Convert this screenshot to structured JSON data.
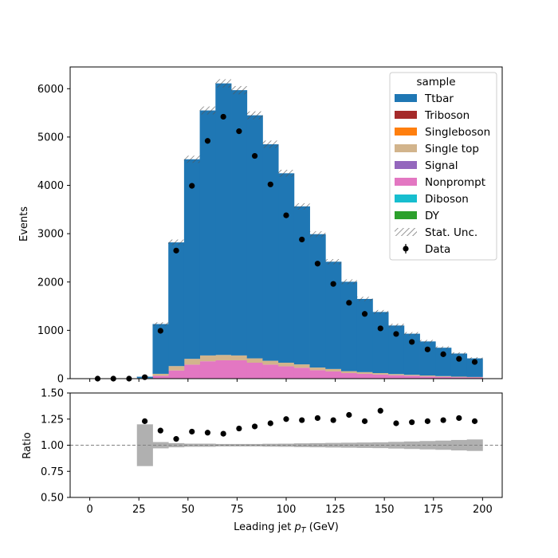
{
  "chart_data": [
    {
      "type": "stacked-step-histogram",
      "xlim": [
        -10,
        210
      ],
      "ylim": [
        0,
        6450
      ],
      "ylabel": "Events",
      "bin_edges": [
        0,
        8,
        16,
        24,
        32,
        40,
        48,
        56,
        64,
        72,
        80,
        88,
        96,
        104,
        112,
        120,
        128,
        136,
        144,
        152,
        160,
        168,
        176,
        184,
        192,
        200
      ],
      "yticks": [
        0,
        1000,
        2000,
        3000,
        4000,
        5000,
        6000
      ],
      "colors": {
        "Ttbar": "#1f77b4",
        "Triboson": "#a52a2a",
        "Singleboson": "#ff7f0e",
        "Single top": "#d2b48c",
        "Signal": "#9467bd",
        "Nonprompt": "#e377c2",
        "Diboson": "#17becf",
        "DY": "#2ca02c",
        "Data": "#000000"
      },
      "series": [
        {
          "name": "Nonprompt",
          "values": [
            0,
            0,
            0,
            5,
            60,
            170,
            290,
            360,
            380,
            380,
            330,
            290,
            255,
            225,
            175,
            150,
            115,
            100,
            85,
            70,
            60,
            45,
            38,
            30,
            25
          ]
        },
        {
          "name": "Single top",
          "values": [
            0,
            0,
            0,
            5,
            40,
            90,
            120,
            120,
            110,
            100,
            90,
            80,
            75,
            70,
            55,
            50,
            40,
            35,
            30,
            25,
            20,
            20,
            15,
            12,
            10
          ]
        },
        {
          "name": "Ttbar",
          "values": [
            0,
            0,
            0,
            30,
            1030,
            2560,
            4130,
            5070,
            5620,
            5490,
            5030,
            4480,
            3920,
            3270,
            2760,
            2220,
            1850,
            1515,
            1265,
            1005,
            850,
            705,
            587,
            478,
            385
          ]
        }
      ],
      "totals": [
        0,
        0,
        0,
        40,
        1130,
        2820,
        4540,
        5550,
        6110,
        5970,
        5450,
        4850,
        4250,
        3565,
        2990,
        2420,
        2005,
        1650,
        1380,
        1100,
        930,
        770,
        640,
        520,
        420
      ],
      "data_points": {
        "name": "Data",
        "x": [
          4,
          12,
          20,
          28,
          36,
          44,
          52,
          60,
          68,
          76,
          84,
          92,
          100,
          108,
          116,
          124,
          132,
          140,
          148,
          156,
          164,
          172,
          180,
          188,
          196
        ],
        "y": [
          0,
          0,
          0,
          30,
          990,
          2650,
          3990,
          4920,
          5420,
          5120,
          4610,
          4020,
          3380,
          2880,
          2380,
          1960,
          1570,
          1340,
          1040,
          925,
          760,
          605,
          505,
          410,
          345
        ]
      },
      "legend": {
        "title": "sample",
        "placement": "upper right",
        "entries": [
          "Ttbar",
          "Triboson",
          "Singleboson",
          "Single top",
          "Signal",
          "Nonprompt",
          "Diboson",
          "DY",
          "Stat. Unc.",
          "Data"
        ]
      }
    },
    {
      "type": "ratio",
      "xlim": [
        -10,
        210
      ],
      "ylim": [
        0.5,
        1.5
      ],
      "ylabel": "Ratio",
      "xlabel": "Leading jet  p_T (GeV)",
      "xlabel_parts": [
        "Leading jet  ",
        "p",
        "T",
        " (GeV)"
      ],
      "xticks": [
        0,
        25,
        50,
        75,
        100,
        125,
        150,
        175,
        200
      ],
      "yticks": [
        "0.50",
        "0.75",
        "1.00",
        "1.25",
        "1.50"
      ],
      "reference_line": 1.0,
      "x": [
        28,
        36,
        44,
        52,
        60,
        68,
        76,
        84,
        92,
        100,
        108,
        116,
        124,
        132,
        140,
        148,
        156,
        164,
        172,
        180,
        188,
        196
      ],
      "values": [
        1.23,
        1.14,
        1.06,
        1.13,
        1.12,
        1.11,
        1.16,
        1.18,
        1.21,
        1.25,
        1.24,
        1.26,
        1.24,
        1.29,
        1.23,
        1.33,
        1.21,
        1.22,
        1.23,
        1.24,
        1.26,
        1.23
      ],
      "stat_unc_halfwidth": [
        0.2,
        0.03,
        0.02,
        0.015,
        0.015,
        0.012,
        0.012,
        0.012,
        0.014,
        0.015,
        0.018,
        0.02,
        0.022,
        0.024,
        0.026,
        0.028,
        0.032,
        0.036,
        0.04,
        0.044,
        0.05,
        0.055
      ]
    }
  ]
}
